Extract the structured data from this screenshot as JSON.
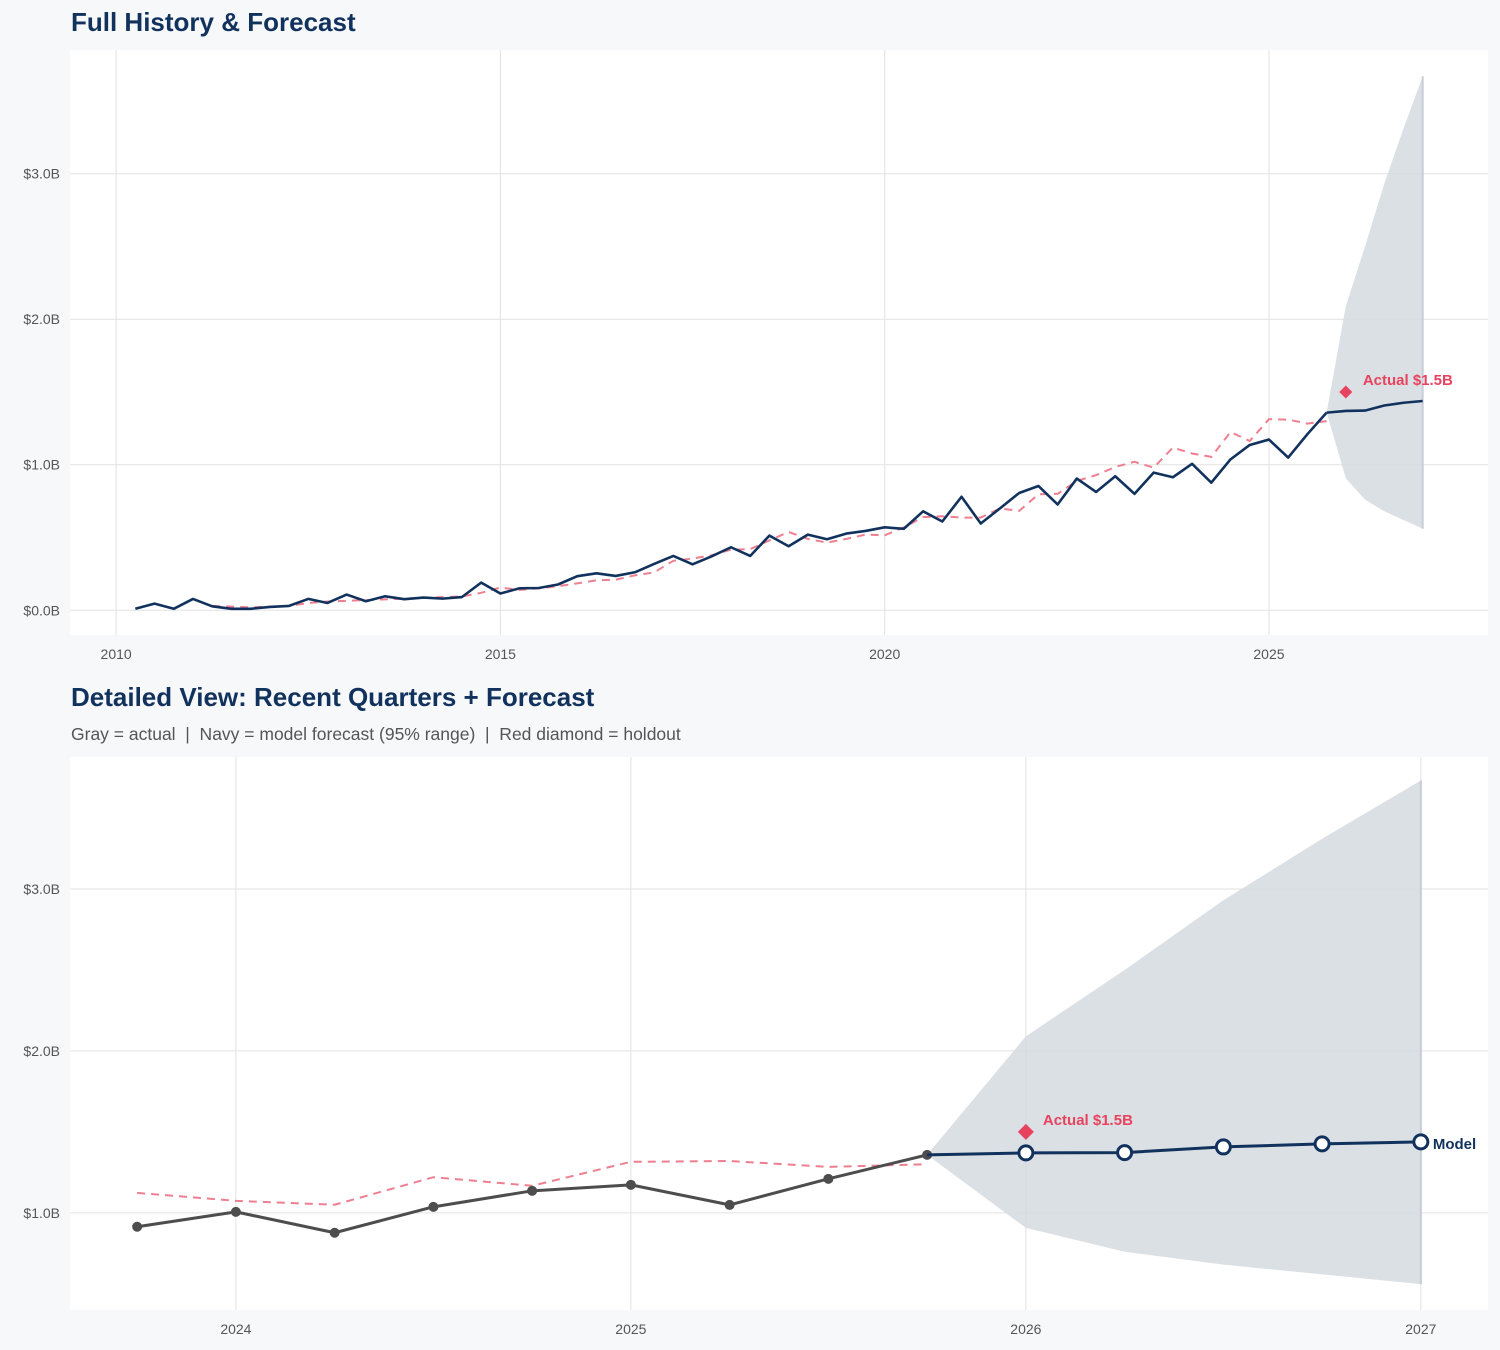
{
  "colors": {
    "navy": "#12325e",
    "holdout_red": "#e8435e",
    "fitted_red_dashed": "#ee7f90",
    "actual_gray": "#4d4d4d",
    "band": "#d5dae1",
    "background": "#f7f8fa",
    "panel": "#ffffff",
    "grid": "#e2e2e2"
  },
  "chart_data": [
    {
      "type": "line",
      "title": "Full History & Forecast",
      "subtitle": "",
      "xlabel": "",
      "ylabel": "",
      "xlim": [
        2009.4,
        2027.85
      ],
      "ylim": [
        -0.17,
        3.85
      ],
      "x_ticks": [
        2010,
        2015,
        2020,
        2025
      ],
      "x_tick_labels": [
        "2010",
        "2015",
        "2020",
        "2025"
      ],
      "y_ticks": [
        0,
        1,
        2,
        3
      ],
      "y_tick_labels": [
        "$0.0B",
        "$1.0B",
        "$2.0B",
        "$3.0B"
      ],
      "grid": true,
      "legend": "none",
      "series": [
        {
          "role": "actual",
          "style": "solid navy",
          "x_start": 2010.25,
          "x_step": 0.25,
          "values": [
            0.01,
            0.046,
            0.01,
            0.078,
            0.027,
            0.01,
            0.01,
            0.023,
            0.03,
            0.078,
            0.05,
            0.108,
            0.062,
            0.096,
            0.076,
            0.087,
            0.08,
            0.091,
            0.19,
            0.115,
            0.151,
            0.153,
            0.177,
            0.234,
            0.254,
            0.236,
            0.261,
            0.318,
            0.373,
            0.316,
            0.371,
            0.433,
            0.373,
            0.513,
            0.44,
            0.52,
            0.488,
            0.527,
            0.545,
            0.57,
            0.56,
            0.68,
            0.61,
            0.78,
            0.596,
            0.7,
            0.806,
            0.854,
            0.727,
            0.905,
            0.813,
            0.921,
            0.8,
            0.946,
            0.914,
            1.006,
            0.877,
            1.037,
            1.136,
            1.173,
            1.049,
            1.21,
            1.358
          ]
        },
        {
          "role": "fitted",
          "style": "dashed red",
          "x_start": 2011.25,
          "x_step": 0.25,
          "values": [
            0.03,
            0.025,
            0.02,
            0.025,
            0.03,
            0.05,
            0.06,
            0.065,
            0.07,
            0.075,
            0.08,
            0.085,
            0.09,
            0.095,
            0.12,
            0.156,
            0.14,
            0.15,
            0.165,
            0.185,
            0.206,
            0.21,
            0.24,
            0.26,
            0.34,
            0.355,
            0.378,
            0.417,
            0.42,
            0.48,
            0.538,
            0.49,
            0.465,
            0.49,
            0.52,
            0.515,
            0.57,
            0.64,
            0.646,
            0.637,
            0.637,
            0.7,
            0.683,
            0.797,
            0.8,
            0.889,
            0.928,
            0.985,
            1.02,
            0.98,
            1.118,
            1.077,
            1.054,
            1.225,
            1.163,
            1.313,
            1.31,
            1.283,
            1.3
          ]
        },
        {
          "role": "forecast",
          "style": "solid navy",
          "x": [
            2025.75,
            2026,
            2026.25,
            2026.5,
            2026.75,
            2027
          ],
          "values": [
            1.358,
            1.37,
            1.372,
            1.407,
            1.426,
            1.438
          ],
          "lower": [
            1.358,
            0.907,
            0.76,
            0.68,
            0.62,
            0.56
          ],
          "upper": [
            1.358,
            2.09,
            2.5,
            2.93,
            3.31,
            3.67
          ]
        }
      ],
      "holdout": {
        "x": 2026,
        "value": 1.5,
        "label": "Actual $1.5B"
      }
    },
    {
      "type": "line",
      "title": "Detailed View: Recent Quarters + Forecast",
      "subtitle": "Gray = actual  |  Navy = model forecast (95% range)  |  Red diamond = holdout",
      "xlabel": "",
      "ylabel": "",
      "xlim": [
        2023.58,
        2027.17
      ],
      "ylim": [
        0.4,
        3.815
      ],
      "x_ticks": [
        2024,
        2025,
        2026,
        2027
      ],
      "x_tick_labels": [
        "2024",
        "2025",
        "2026",
        "2027"
      ],
      "y_ticks": [
        1,
        2,
        3
      ],
      "y_tick_labels": [
        "$1.0B",
        "$2.0B",
        "$3.0B"
      ],
      "grid": true,
      "legend": "none",
      "series": [
        {
          "role": "actual",
          "style": "solid gray with markers",
          "x": [
            2023.75,
            2024,
            2024.25,
            2024.5,
            2024.75,
            2025,
            2025.25,
            2025.5,
            2025.75
          ],
          "values": [
            0.914,
            1.006,
            0.877,
            1.037,
            1.136,
            1.173,
            1.049,
            1.21,
            1.358
          ]
        },
        {
          "role": "fitted",
          "style": "dashed red",
          "x": [
            2023.75,
            2024,
            2024.25,
            2024.5,
            2024.75,
            2025,
            2025.25,
            2025.5,
            2025.75
          ],
          "values": [
            1.123,
            1.074,
            1.05,
            1.22,
            1.167,
            1.315,
            1.32,
            1.284,
            1.3
          ]
        },
        {
          "role": "forecast",
          "style": "solid navy with open markers",
          "label": "Model",
          "x": [
            2025.75,
            2026,
            2026.25,
            2026.5,
            2026.75,
            2027
          ],
          "values": [
            1.358,
            1.37,
            1.372,
            1.407,
            1.426,
            1.438
          ],
          "lower": [
            1.358,
            0.907,
            0.76,
            0.68,
            0.62,
            0.56
          ],
          "upper": [
            1.358,
            2.09,
            2.5,
            2.93,
            3.31,
            3.67
          ]
        }
      ],
      "holdout": {
        "x": 2026,
        "value": 1.5,
        "label": "Actual $1.5B"
      }
    }
  ]
}
